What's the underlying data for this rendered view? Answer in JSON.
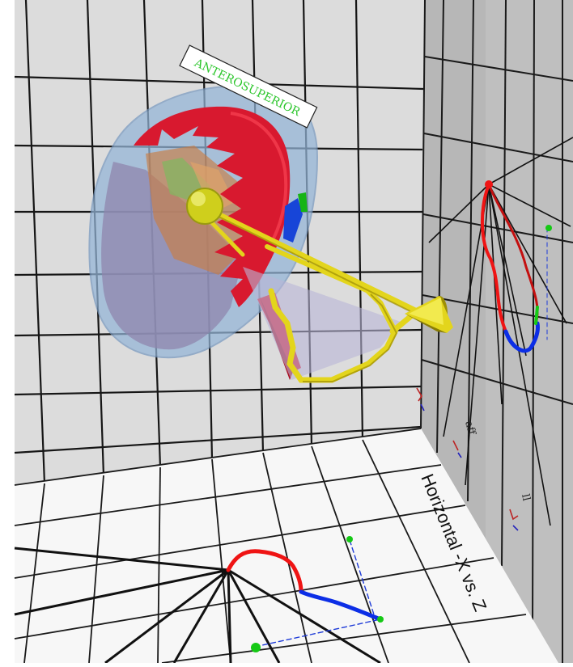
{
  "labels": {
    "region": "ANTEROSUPERIOR",
    "floor_axis": "Horizontal -X vs. Z",
    "wall_marks": [
      "aff",
      "ll"
    ]
  },
  "colors": {
    "back_wall": "#dcdcdc",
    "side_wall": "#bdbdbd",
    "floor": "#f7f7f7",
    "grid": "#161616",
    "hemisphere": "#d8192f",
    "shell": "#93b4d7",
    "sphere": "#dada22",
    "yellow": "#e3d51c",
    "trace_red": "#ef1414",
    "trace_blue": "#0c2ee6",
    "trace_green": "#15c915",
    "label_text": "#2cc62c"
  }
}
